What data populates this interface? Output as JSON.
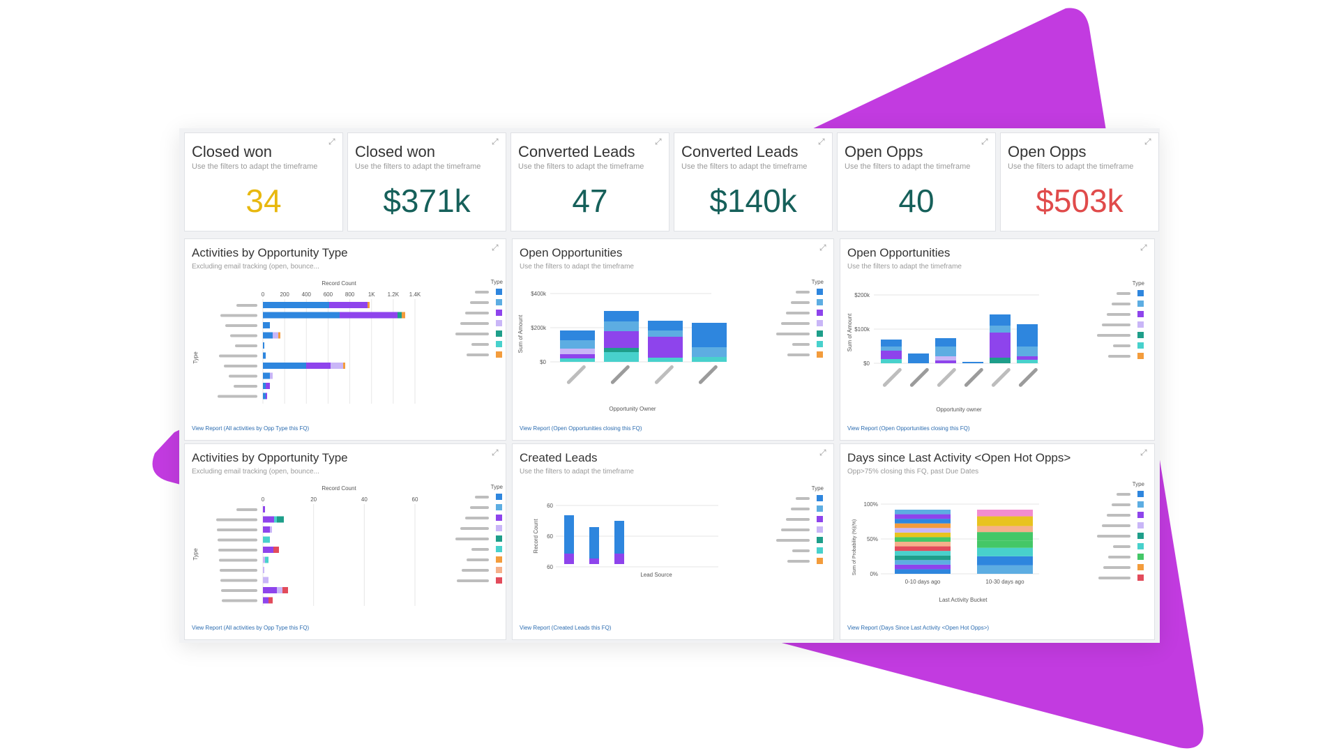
{
  "colors": {
    "purple": "#c03fe0",
    "blue": "#2e86de",
    "lightblue": "#5dade2",
    "violet": "#8e44ec",
    "lavender": "#c9b6f7",
    "teal": "#1e9e8a",
    "cyan": "#48d1cc",
    "orange": "#f39c3c",
    "peach": "#f5b08a",
    "red": "#e24b5b",
    "yellow": "#e8c31f",
    "green": "#44c767",
    "pink": "#f28ccf",
    "gray": "#bdbdbd"
  },
  "kpis": [
    {
      "title": "Closed won",
      "subtitle": "Use the filters to adapt the timeframe",
      "value": "34",
      "color": "#e8b80f"
    },
    {
      "title": "Closed won",
      "subtitle": "Use the filters to adapt the timeframe",
      "value": "$371k",
      "color": "#16605a"
    },
    {
      "title": "Converted Leads",
      "subtitle": "Use the filters to adapt the timeframe",
      "value": "47",
      "color": "#16605a"
    },
    {
      "title": "Converted Leads",
      "subtitle": "Use the filters to adapt the timeframe",
      "value": "$140k",
      "color": "#16605a"
    },
    {
      "title": "Open Opps",
      "subtitle": "Use the filters to adapt the timeframe",
      "value": "40",
      "color": "#16605a"
    },
    {
      "title": "Open Opps",
      "subtitle": "Use the filters to adapt the timeframe",
      "value": "$503k",
      "color": "#e04b4b"
    }
  ],
  "charts": {
    "act1": {
      "title": "Activities by Opportunity Type",
      "subtitle": "Excluding email tracking (open, bounce...",
      "xlabel": "Record Count",
      "ylabel": "Type",
      "legend_title": "Type",
      "ticks": [
        "0",
        "200",
        "400",
        "600",
        "800",
        "1K",
        "1.2K",
        "1.4K"
      ],
      "link": "View Report (All activities by Opp Type this FQ)"
    },
    "opp1": {
      "title": "Open Opportunities",
      "subtitle": "Use the filters to adapt the timeframe",
      "ylabel": "Sum of Amount",
      "xlabel": "Opportunity Owner",
      "ticks": [
        "$400k",
        "$200k",
        "$0"
      ],
      "legend_title": "Type",
      "link": "View Report (Open Opportunities closing this FQ)"
    },
    "opp2": {
      "title": "Open Opportunities",
      "subtitle": "Use the filters to adapt the timeframe",
      "ylabel": "Sum of Amount",
      "xlabel": "Opportunity owner",
      "ticks": [
        "$200k",
        "$100k",
        "$0"
      ],
      "legend_title": "Type",
      "link": "View Report (Open Opportunities closing this FQ)"
    },
    "act2": {
      "title": "Activities by Opportunity Type",
      "subtitle": "Excluding email tracking (open, bounce...",
      "xlabel": "Record Count",
      "ylabel": "Type",
      "legend_title": "Type",
      "ticks": [
        "0",
        "20",
        "40",
        "60"
      ],
      "link": "View Report (All activities by Opp Type this FQ)"
    },
    "leads": {
      "title": "Created Leads",
      "subtitle": "Use the filters to adapt the timeframe",
      "ylabel": "Record Count",
      "xlabel": "Lead Source",
      "ticks": [
        "60",
        "60",
        "60"
      ],
      "legend_title": "Type",
      "link": "View Report (Created Leads this FQ)"
    },
    "days": {
      "title": "Days since Last Activity <Open Hot Opps>",
      "subtitle": "Opp>75% closing this FQ, past Due Dates",
      "ylabel": "Sum of Probability (%)(%)",
      "xlabel": "Last Activity Bucket",
      "ticks": [
        "100%",
        "50%",
        "0%"
      ],
      "categories": [
        "0-10 days ago",
        "10-30 days ago"
      ],
      "legend_title": "Type",
      "link": "View Report (Days Since Last Activity <Open Hot Opps>)"
    }
  },
  "expand_icon": "expand-icon"
}
